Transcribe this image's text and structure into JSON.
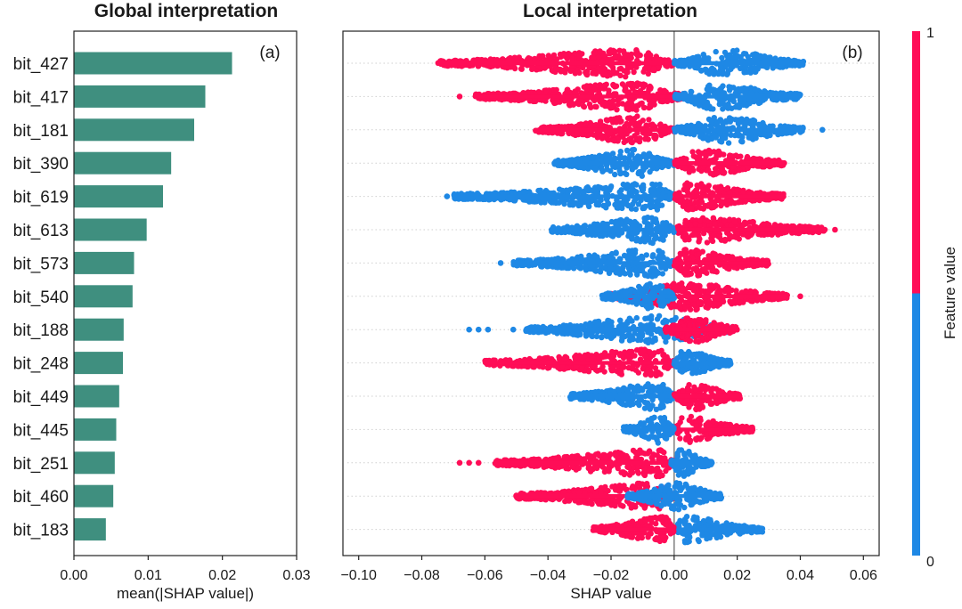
{
  "chart_data": [
    {
      "type": "bar",
      "orientation": "horizontal",
      "title": "Global interpretation",
      "panel_label": "(a)",
      "xlabel": "mean(|SHAP value|)",
      "xlim": [
        0,
        0.03
      ],
      "xticks": [
        "0.00",
        "0.01",
        "0.02",
        "0.03"
      ],
      "bar_color": "#3f8f7f",
      "categories": [
        "bit_427",
        "bit_417",
        "bit_181",
        "bit_390",
        "bit_619",
        "bit_613",
        "bit_573",
        "bit_540",
        "bit_188",
        "bit_248",
        "bit_449",
        "bit_445",
        "bit_251",
        "bit_460",
        "bit_183"
      ],
      "values": [
        0.0213,
        0.0177,
        0.0162,
        0.0131,
        0.012,
        0.0098,
        0.0081,
        0.0079,
        0.0067,
        0.0066,
        0.0061,
        0.0057,
        0.0055,
        0.0053,
        0.0043
      ],
      "grid": false
    },
    {
      "type": "scatter",
      "subtype": "beeswarm",
      "title": "Local interpretation",
      "panel_label": "(b)",
      "xlabel": "SHAP value",
      "xlim": [
        -0.105,
        0.065
      ],
      "xticks": [
        "−0.10",
        "−0.08",
        "−0.06",
        "−0.04",
        "−0.02",
        "0.00",
        "0.02",
        "0.04",
        "0.06"
      ],
      "categories": [
        "bit_427",
        "bit_417",
        "bit_181",
        "bit_390",
        "bit_619",
        "bit_613",
        "bit_573",
        "bit_540",
        "bit_188",
        "bit_248",
        "bit_449",
        "bit_445",
        "bit_251",
        "bit_460",
        "bit_183"
      ],
      "zero_line": true,
      "colorbar": {
        "label": "Feature value",
        "high_label": "1",
        "low_label": "0",
        "high_color": "#ff0d57",
        "low_color": "#1e88e5"
      },
      "series": [
        {
          "feature": "bit_427",
          "low": {
            "range": [
              0.0,
              0.041
            ],
            "peak": 0.016,
            "outliers": []
          },
          "high": {
            "range": [
              -0.075,
              0.0
            ],
            "peak": -0.012,
            "outliers": []
          }
        },
        {
          "feature": "bit_417",
          "low": {
            "range": [
              0.0,
              0.04
            ],
            "peak": 0.013,
            "outliers": []
          },
          "high": {
            "range": [
              -0.063,
              0.004
            ],
            "peak": -0.012,
            "outliers": [
              -0.068
            ]
          }
        },
        {
          "feature": "bit_181",
          "low": {
            "range": [
              0.0,
              0.041
            ],
            "peak": 0.016,
            "outliers": [
              0.047
            ]
          },
          "high": {
            "range": [
              -0.044,
              0.0
            ],
            "peak": -0.01,
            "outliers": []
          }
        },
        {
          "feature": "bit_390",
          "low": {
            "range": [
              -0.038,
              0.0
            ],
            "peak": -0.012,
            "outliers": []
          },
          "high": {
            "range": [
              0.0,
              0.035
            ],
            "peak": 0.008,
            "outliers": []
          }
        },
        {
          "feature": "bit_619",
          "low": {
            "range": [
              -0.07,
              0.0
            ],
            "peak": -0.005,
            "outliers": [
              -0.072
            ]
          },
          "high": {
            "range": [
              0.0,
              0.035
            ],
            "peak": 0.004,
            "outliers": []
          }
        },
        {
          "feature": "bit_613",
          "low": {
            "range": [
              -0.039,
              0.0
            ],
            "peak": -0.005,
            "outliers": []
          },
          "high": {
            "range": [
              0.0,
              0.048
            ],
            "peak": 0.005,
            "outliers": [
              0.051
            ]
          }
        },
        {
          "feature": "bit_573",
          "low": {
            "range": [
              -0.051,
              0.0
            ],
            "peak": -0.005,
            "outliers": [
              -0.055
            ]
          },
          "high": {
            "range": [
              0.0,
              0.03
            ],
            "peak": 0.003,
            "outliers": []
          }
        },
        {
          "feature": "bit_540",
          "low": {
            "range": [
              -0.023,
              0.0
            ],
            "peak": -0.005,
            "outliers": []
          },
          "high": {
            "range": [
              -0.02,
              0.036
            ],
            "peak": 0.004,
            "outliers": [
              0.04
            ]
          }
        },
        {
          "feature": "bit_188",
          "low": {
            "range": [
              -0.047,
              0.019
            ],
            "peak": -0.005,
            "outliers": [
              -0.065,
              -0.062,
              -0.059,
              -0.051
            ]
          },
          "high": {
            "range": [
              -0.003,
              0.02
            ],
            "peak": 0.006,
            "outliers": []
          }
        },
        {
          "feature": "bit_248",
          "low": {
            "range": [
              0.0,
              0.018
            ],
            "peak": 0.003,
            "outliers": []
          },
          "high": {
            "range": [
              -0.06,
              0.0
            ],
            "peak": -0.005,
            "outliers": []
          }
        },
        {
          "feature": "bit_449",
          "low": {
            "range": [
              -0.033,
              0.0
            ],
            "peak": -0.004,
            "outliers": []
          },
          "high": {
            "range": [
              0.0,
              0.021
            ],
            "peak": 0.006,
            "outliers": []
          }
        },
        {
          "feature": "bit_445",
          "low": {
            "range": [
              -0.016,
              0.0
            ],
            "peak": -0.004,
            "outliers": []
          },
          "high": {
            "range": [
              0.0,
              0.025
            ],
            "peak": 0.003,
            "outliers": []
          }
        },
        {
          "feature": "bit_251",
          "low": {
            "range": [
              -0.001,
              0.012
            ],
            "peak": 0.002,
            "outliers": []
          },
          "high": {
            "range": [
              -0.057,
              0.0
            ],
            "peak": -0.004,
            "outliers": [
              -0.068,
              -0.065,
              -0.062
            ]
          }
        },
        {
          "feature": "bit_460",
          "low": {
            "range": [
              -0.015,
              0.015
            ],
            "peak": 0.002,
            "outliers": []
          },
          "high": {
            "range": [
              -0.051,
              0.0
            ],
            "peak": -0.005,
            "outliers": []
          }
        },
        {
          "feature": "bit_183",
          "low": {
            "range": [
              0.0,
              0.028
            ],
            "peak": 0.003,
            "outliers": []
          },
          "high": {
            "range": [
              -0.026,
              0.0
            ],
            "peak": -0.003,
            "outliers": []
          }
        }
      ]
    }
  ]
}
